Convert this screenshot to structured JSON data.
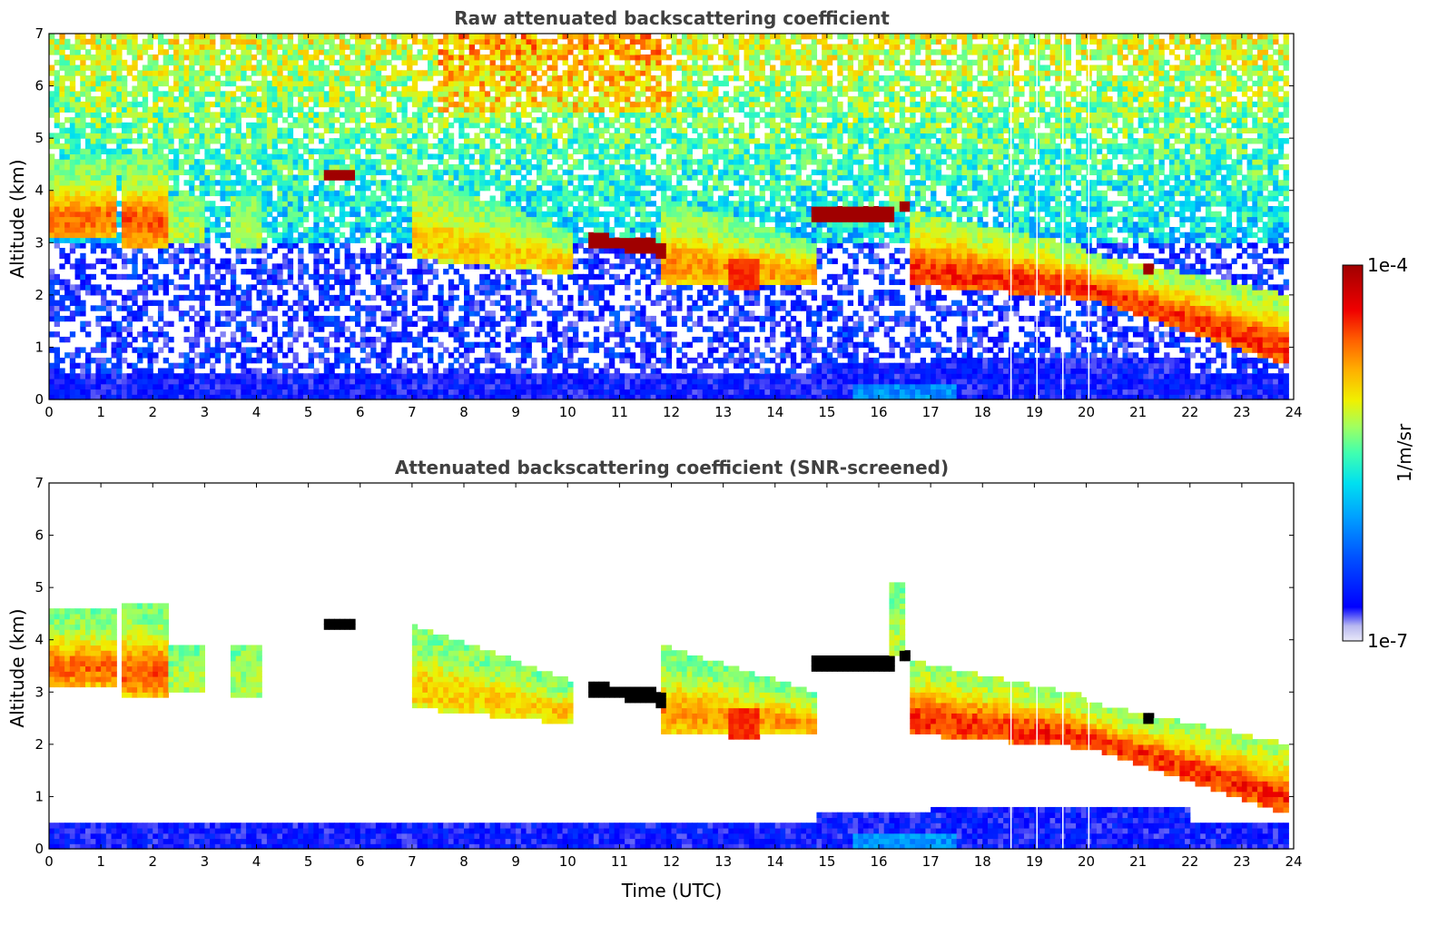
{
  "chart_data": [
    {
      "type": "heatmap",
      "title": "Raw attenuated backscattering coefficient",
      "xlabel": "",
      "ylabel": "Altitude (km)",
      "xlim": [
        0,
        24
      ],
      "ylim": [
        0,
        7
      ],
      "xticks": [
        "0",
        "1",
        "2",
        "3",
        "4",
        "5",
        "6",
        "7",
        "8",
        "9",
        "10",
        "11",
        "12",
        "13",
        "14",
        "15",
        "16",
        "17",
        "18",
        "19",
        "20",
        "21",
        "22",
        "23",
        "24"
      ],
      "yticks": [
        "0",
        "1",
        "2",
        "3",
        "4",
        "5",
        "6",
        "7"
      ],
      "data_end_time": 23.85,
      "gaps_utc": [
        18.55,
        19.05,
        19.55,
        20.05
      ],
      "layers": [
        {
          "kind": "boundary_layer",
          "x": [
            0,
            24
          ],
          "base_km": 0,
          "top_km": 0.45,
          "level": "low"
        },
        {
          "kind": "aerosol",
          "x": [
            15,
            17
          ],
          "base_km": 0.45,
          "top_km": 0.8,
          "level": "low"
        },
        {
          "kind": "cloud",
          "x": [
            0,
            1.3
          ],
          "base_km": 3.1,
          "top_km": 4.6,
          "level": "high"
        },
        {
          "kind": "cloud",
          "x": [
            1.4,
            2.3
          ],
          "base_km": 2.9,
          "top_km": 4.8,
          "level": "high"
        },
        {
          "kind": "cloud",
          "x": [
            2.3,
            4.1
          ],
          "base_km": 2.9,
          "top_km": 4.2,
          "level": "mid"
        },
        {
          "kind": "cloud",
          "x": [
            7,
            10.1
          ],
          "base_km": 2.5,
          "top_km": 4.6,
          "level": "mid-high"
        },
        {
          "kind": "cloud",
          "x": [
            11.8,
            14.8
          ],
          "base_km": 2.1,
          "top_km": 3.9,
          "level": "mid-high"
        },
        {
          "kind": "cloud",
          "x": [
            16.6,
            24
          ],
          "base_km": 0.8,
          "top_km": 3.6,
          "level": "high"
        },
        {
          "kind": "saturated",
          "x": [
            5.3,
            5.9
          ],
          "base_km": 4.25,
          "top_km": 4.45,
          "level": "max"
        },
        {
          "kind": "saturated",
          "x": [
            10.4,
            11.9
          ],
          "base_km": 2.8,
          "top_km": 3.2,
          "level": "max"
        },
        {
          "kind": "saturated",
          "x": [
            14.7,
            16.3
          ],
          "base_km": 3.45,
          "top_km": 3.7,
          "level": "max"
        }
      ]
    },
    {
      "type": "heatmap",
      "title": "Attenuated backscattering coefficient (SNR-screened)",
      "xlabel": "Time (UTC)",
      "ylabel": "Altitude (km)",
      "xlim": [
        0,
        24
      ],
      "ylim": [
        0,
        7
      ],
      "xticks": [
        "0",
        "1",
        "2",
        "3",
        "4",
        "5",
        "6",
        "7",
        "8",
        "9",
        "10",
        "11",
        "12",
        "13",
        "14",
        "15",
        "16",
        "17",
        "18",
        "19",
        "20",
        "21",
        "22",
        "23",
        "24"
      ],
      "yticks": [
        "0",
        "1",
        "2",
        "3",
        "4",
        "5",
        "6",
        "7"
      ],
      "screened": true,
      "saturated_color": "#000000"
    }
  ],
  "colorbar": {
    "label": "1/m/sr",
    "max_label": "1e-4",
    "min_label": "1e-7",
    "colormap": "jet",
    "stops": [
      "#e8e8f8",
      "#b8b8f0",
      "#0000ff",
      "#0050ff",
      "#00a0ff",
      "#00e0f0",
      "#40ffb0",
      "#a0ff60",
      "#f0f000",
      "#ffb000",
      "#ff6000",
      "#f00000",
      "#a00000"
    ]
  }
}
